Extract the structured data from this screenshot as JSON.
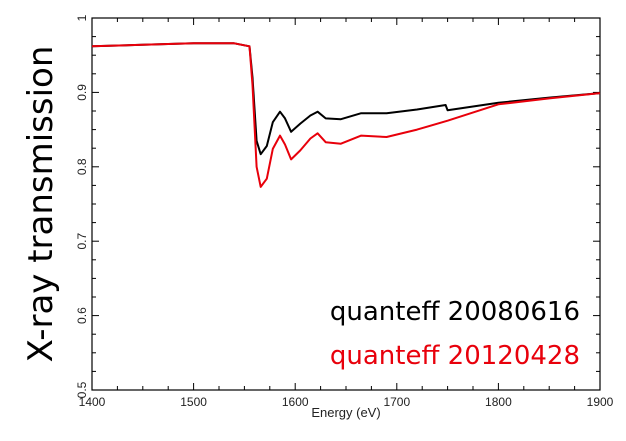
{
  "chart_data": {
    "type": "line",
    "xlabel": "Energy (eV)",
    "ylabel": "X-ray transmission",
    "xlim": [
      1400,
      1900
    ],
    "ylim": [
      0.5,
      1.0
    ],
    "xticks": [
      "1400",
      "1500",
      "1600",
      "1700",
      "1800",
      "1900"
    ],
    "yticks": [
      "0.5",
      "0.6",
      "0.7",
      "0.8",
      "0.9",
      "1"
    ],
    "grid": false,
    "legend_position": "bottom-right",
    "series": [
      {
        "name": "quanteff 20080616",
        "color": "#000000",
        "x": [
          1400,
          1450,
          1500,
          1540,
          1555,
          1558,
          1562,
          1566,
          1572,
          1578,
          1585,
          1590,
          1596,
          1605,
          1615,
          1622,
          1630,
          1645,
          1665,
          1690,
          1720,
          1748,
          1750,
          1800,
          1850,
          1900
        ],
        "y": [
          0.962,
          0.964,
          0.966,
          0.966,
          0.962,
          0.92,
          0.835,
          0.817,
          0.828,
          0.86,
          0.874,
          0.865,
          0.847,
          0.858,
          0.869,
          0.874,
          0.865,
          0.864,
          0.872,
          0.872,
          0.877,
          0.883,
          0.876,
          0.886,
          0.893,
          0.899
        ]
      },
      {
        "name": "quanteff 20120428",
        "color": "#e8000b",
        "x": [
          1400,
          1450,
          1500,
          1540,
          1555,
          1558,
          1562,
          1566,
          1572,
          1578,
          1585,
          1590,
          1596,
          1605,
          1615,
          1622,
          1630,
          1645,
          1665,
          1690,
          1720,
          1750,
          1800,
          1850,
          1900
        ],
        "y": [
          0.962,
          0.964,
          0.966,
          0.966,
          0.962,
          0.91,
          0.8,
          0.773,
          0.784,
          0.824,
          0.842,
          0.83,
          0.81,
          0.822,
          0.838,
          0.845,
          0.833,
          0.831,
          0.842,
          0.84,
          0.85,
          0.862,
          0.884,
          0.892,
          0.899
        ]
      }
    ]
  }
}
